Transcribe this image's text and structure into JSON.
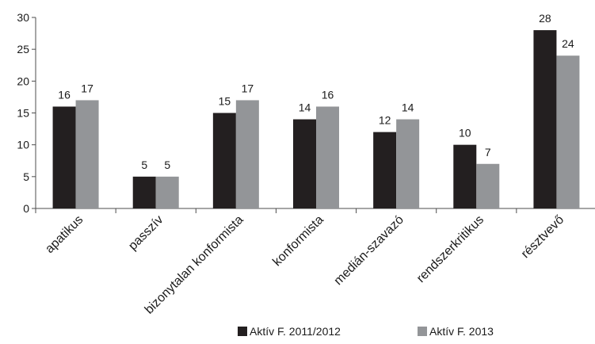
{
  "chart_data": {
    "type": "bar",
    "categories": [
      "apatikus",
      "passzív",
      "bizonytalan konformista",
      "konformista",
      "medián-szavazó",
      "rendszerkritikus",
      "résztvevő"
    ],
    "series": [
      {
        "name": "Aktív F. 2011/2012",
        "values": [
          16,
          5,
          15,
          14,
          12,
          10,
          28
        ],
        "color": "#231f20"
      },
      {
        "name": "Aktív F. 2013",
        "values": [
          17,
          5,
          17,
          16,
          14,
          7,
          24
        ],
        "color": "#939598"
      }
    ],
    "yticks": [
      "0",
      "5",
      "10",
      "15",
      "20",
      "25",
      "30"
    ],
    "ylim": [
      0,
      30
    ],
    "grid": false,
    "legend_position": "bottom-right",
    "data_labels": true
  }
}
